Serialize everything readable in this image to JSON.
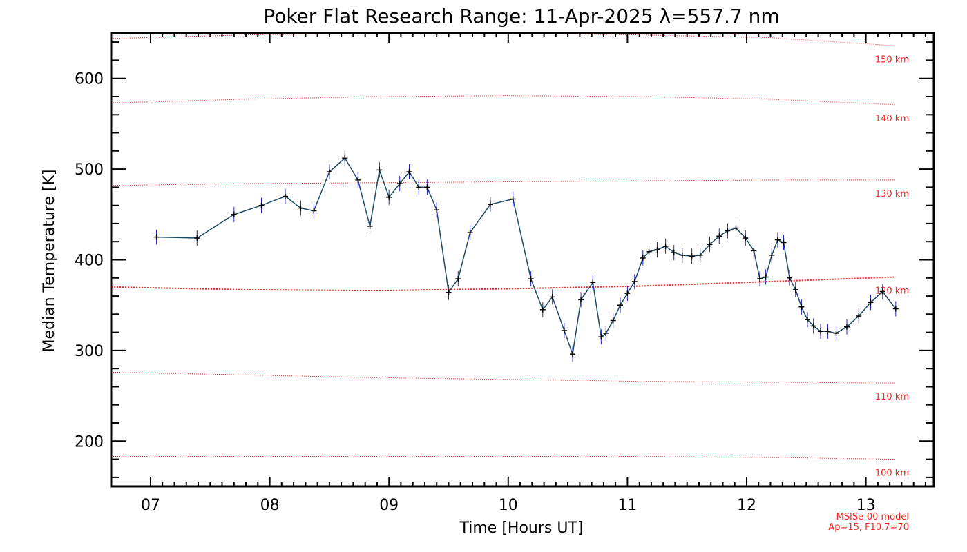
{
  "chart_data": {
    "type": "line",
    "title": "Poker Flat Research Range: 11-Apr-2025 λ=557.7 nm",
    "xlabel": "Time [Hours UT]",
    "ylabel": "Median Temperature [K]",
    "xlim": [
      6.67,
      13.57
    ],
    "ylim": [
      150,
      650
    ],
    "xticks": [
      7,
      8,
      9,
      10,
      11,
      12,
      13
    ],
    "xtick_labels": [
      "07",
      "08",
      "09",
      "10",
      "11",
      "12",
      "13"
    ],
    "yticks": [
      200,
      300,
      400,
      500,
      600
    ],
    "ytick_labels": [
      "200",
      "300",
      "400",
      "500",
      "600"
    ],
    "grid": false,
    "series": [
      {
        "x": [
          7.05,
          7.39,
          7.7,
          7.93,
          8.13,
          8.26,
          8.37,
          8.5,
          8.63,
          8.74,
          8.84,
          8.92,
          9.0,
          9.09,
          9.17,
          9.25,
          9.32,
          9.4,
          9.5,
          9.58,
          9.68,
          9.85,
          10.04,
          10.19,
          10.29,
          10.37,
          10.47,
          10.54,
          10.61,
          10.71,
          10.78,
          10.82,
          10.88,
          10.94,
          11.0,
          11.06,
          11.13,
          11.18,
          11.25,
          11.32,
          11.39,
          11.46,
          11.54,
          11.61,
          11.69,
          11.77,
          11.84,
          11.91,
          11.99,
          12.06,
          12.11,
          12.16,
          12.21,
          12.26,
          12.31,
          12.36,
          12.41,
          12.46,
          12.51,
          12.56,
          12.62,
          12.68,
          12.75,
          12.84,
          12.94,
          13.04,
          13.14,
          13.25
        ],
        "values": [
          425,
          424,
          450,
          460,
          470,
          457,
          454,
          497,
          512,
          488,
          437,
          499,
          469,
          484,
          497,
          480,
          480,
          455,
          364,
          379,
          430,
          461,
          467,
          379,
          345,
          359,
          322,
          296,
          356,
          375,
          315,
          319,
          333,
          350,
          363,
          376,
          402,
          409,
          411,
          415,
          408,
          405,
          404,
          405,
          417,
          426,
          432,
          435,
          424,
          410,
          379,
          381,
          405,
          422,
          419,
          380,
          367,
          348,
          334,
          327,
          321,
          321,
          319,
          326,
          338,
          353,
          365,
          346
        ],
        "color": "#000000",
        "line_color": "#1a4a66",
        "error_color": "#2222cc"
      }
    ],
    "altitude_lines": {
      "color": "#ff2020",
      "x": [
        6.67,
        7.8,
        8.9,
        10.0,
        11.1,
        12.2,
        13.25
      ],
      "lines": [
        {
          "label": "100 km",
          "values": [
            183,
            183,
            183,
            183,
            183,
            182,
            180
          ]
        },
        {
          "label": "110 km",
          "values": [
            276,
            273,
            270,
            268,
            266,
            265,
            264
          ]
        },
        {
          "label": "120 km",
          "values": [
            370,
            367,
            366,
            368,
            371,
            376,
            381
          ]
        },
        {
          "label": "130 km",
          "values": [
            482,
            484,
            485,
            486,
            487,
            488,
            488
          ]
        },
        {
          "label": "140 km",
          "values": [
            573,
            577,
            580,
            581,
            580,
            577,
            571
          ]
        },
        {
          "label": "150 km",
          "values": [
            644,
            648,
            650,
            650,
            648,
            645,
            636
          ]
        }
      ]
    },
    "model_note": [
      "MSISe-00 model",
      "Ap=15, F10.7=70"
    ]
  }
}
